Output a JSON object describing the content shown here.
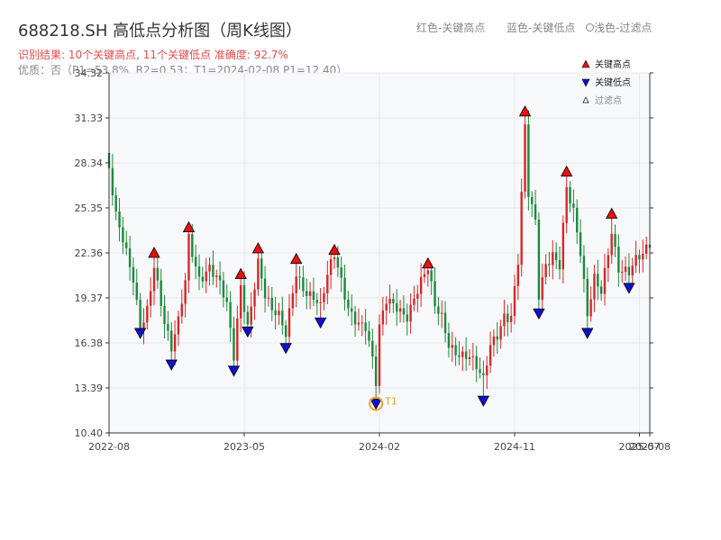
{
  "header": {
    "title": "688218.SH 高低点分析图（周K线图）",
    "result_line": "识别结果: 10个关键高点, 11个关键低点  准确度: 92.7%",
    "quality_line": "优质：否（P1=53.8%, R2=0.53；T1=2024-02-08 P1=12.40）"
  },
  "top_legend": {
    "red_label": "红色-关键高点",
    "blue_label": "蓝色-关键低点",
    "hollow_label": "浅色-过滤点"
  },
  "colors": {
    "up": "#d62728",
    "down": "#1b8a3c",
    "high_marker": "#e81010",
    "low_marker": "#1010d0",
    "t1_ring": "#f0a030",
    "grid": "#e4e8ee",
    "plot_bg": "#f7f8fa"
  },
  "chart_data": {
    "type": "candlestick",
    "title": "688218.SH 高低点分析图（周K线图）",
    "ylim": [
      10.4,
      34.32
    ],
    "y_ticks": [
      "10.40",
      "13.39",
      "16.38",
      "19.37",
      "22.36",
      "25.35",
      "28.34",
      "31.33",
      "34.32"
    ],
    "x_ticks": [
      {
        "label": "2022-08",
        "week": 0
      },
      {
        "label": "2023-05",
        "week": 39
      },
      {
        "label": "2024-02",
        "week": 78
      },
      {
        "label": "2024-11",
        "week": 117
      },
      {
        "label": "2025-07",
        "week": 153
      },
      {
        "label": "2025-08",
        "week": 156
      }
    ],
    "legend": {
      "position": "top-right",
      "entries": [
        "关键高点",
        "关键低点",
        "过滤点"
      ]
    },
    "t1": {
      "label": "T1",
      "date": "2024-02-08",
      "week": 77,
      "price": 12.4
    },
    "key_highs": [
      {
        "week": 13,
        "price": 22.3
      },
      {
        "week": 23,
        "price": 24.0
      },
      {
        "week": 38,
        "price": 20.9
      },
      {
        "week": 43,
        "price": 22.6
      },
      {
        "week": 54,
        "price": 21.9
      },
      {
        "week": 65,
        "price": 22.5
      },
      {
        "week": 92,
        "price": 21.6
      },
      {
        "week": 120,
        "price": 31.7
      },
      {
        "week": 132,
        "price": 27.7
      },
      {
        "week": 145,
        "price": 24.9
      }
    ],
    "key_lows": [
      {
        "week": 9,
        "price": 17.1
      },
      {
        "week": 18,
        "price": 15.0
      },
      {
        "week": 36,
        "price": 14.6
      },
      {
        "week": 40,
        "price": 17.2
      },
      {
        "week": 51,
        "price": 16.1
      },
      {
        "week": 61,
        "price": 17.8
      },
      {
        "week": 77,
        "price": 12.4
      },
      {
        "week": 108,
        "price": 12.6
      },
      {
        "week": 124,
        "price": 18.4
      },
      {
        "week": 138,
        "price": 17.1
      },
      {
        "week": 150,
        "price": 20.1
      }
    ],
    "anchors": [
      [
        0,
        28.0
      ],
      [
        2,
        24.5
      ],
      [
        5,
        22.0
      ],
      [
        7,
        20.5
      ],
      [
        9,
        17.6
      ],
      [
        11,
        19.0
      ],
      [
        13,
        21.8
      ],
      [
        15,
        19.0
      ],
      [
        16,
        17.5
      ],
      [
        18,
        15.6
      ],
      [
        20,
        17.5
      ],
      [
        22,
        20.5
      ],
      [
        23,
        23.5
      ],
      [
        26,
        21.0
      ],
      [
        29,
        21.5
      ],
      [
        32,
        20.0
      ],
      [
        34,
        18.5
      ],
      [
        36,
        15.3
      ],
      [
        38,
        20.3
      ],
      [
        40,
        17.8
      ],
      [
        43,
        22.0
      ],
      [
        45,
        19.5
      ],
      [
        47,
        18.2
      ],
      [
        49,
        17.8
      ],
      [
        51,
        16.8
      ],
      [
        53,
        20.0
      ],
      [
        54,
        21.3
      ],
      [
        57,
        20.0
      ],
      [
        59,
        19.5
      ],
      [
        61,
        18.5
      ],
      [
        63,
        20.5
      ],
      [
        65,
        22.0
      ],
      [
        67,
        20.5
      ],
      [
        69,
        19.0
      ],
      [
        72,
        18.0
      ],
      [
        74,
        17.5
      ],
      [
        76,
        15.0
      ],
      [
        77,
        13.4
      ],
      [
        78,
        17.0
      ],
      [
        80,
        19.0
      ],
      [
        83,
        19.0
      ],
      [
        86,
        18.5
      ],
      [
        88,
        19.5
      ],
      [
        90,
        20.3
      ],
      [
        92,
        21.0
      ],
      [
        94,
        18.5
      ],
      [
        96,
        18.0
      ],
      [
        98,
        16.5
      ],
      [
        101,
        16.0
      ],
      [
        104,
        15.5
      ],
      [
        106,
        14.5
      ],
      [
        108,
        13.5
      ],
      [
        110,
        16.0
      ],
      [
        112,
        17.0
      ],
      [
        114,
        18.5
      ],
      [
        116,
        18.5
      ],
      [
        118,
        22.0
      ],
      [
        120,
        30.5
      ],
      [
        121,
        26.0
      ],
      [
        123,
        24.0
      ],
      [
        124,
        19.2
      ],
      [
        126,
        21.5
      ],
      [
        128,
        22.5
      ],
      [
        130,
        22.0
      ],
      [
        132,
        27.0
      ],
      [
        134,
        25.0
      ],
      [
        136,
        22.0
      ],
      [
        138,
        17.8
      ],
      [
        140,
        20.5
      ],
      [
        142,
        20.0
      ],
      [
        145,
        24.2
      ],
      [
        147,
        21.5
      ],
      [
        150,
        20.8
      ],
      [
        152,
        21.5
      ],
      [
        154,
        22.0
      ],
      [
        156,
        23.0
      ]
    ]
  }
}
